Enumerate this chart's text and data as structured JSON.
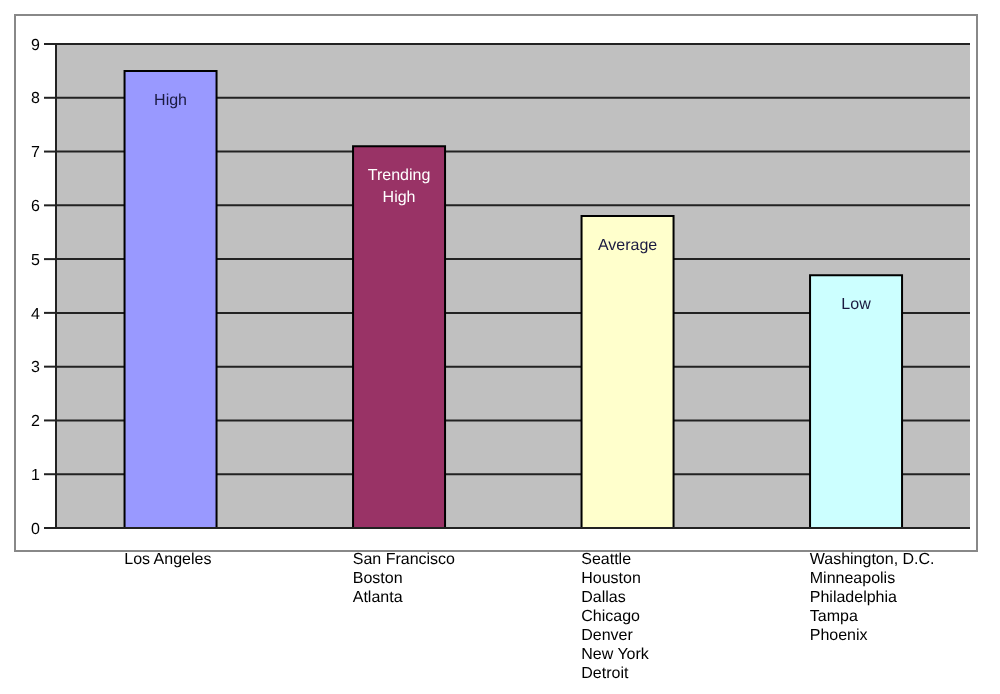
{
  "chart_data": {
    "type": "bar",
    "categories": [
      "Los Angeles",
      "San Francisco\nBoston\nAtlanta",
      "Seattle\nHouston\nDallas\nChicago\nDenver\nNew York\nDetroit",
      "Washington, D.C.\nMinneapolis\nPhiladelphia\nTampa\nPhoenix"
    ],
    "values": [
      8.5,
      7.1,
      5.8,
      4.7
    ],
    "colors": [
      "#9999ff",
      "#993366",
      "#ffffcc",
      "#ccffff"
    ],
    "value_labels": [
      "High",
      "Trending High",
      "Average",
      "Low"
    ],
    "ylim": [
      0,
      9
    ],
    "yticks": [
      0,
      1,
      2,
      3,
      4,
      5,
      6,
      7,
      8,
      9
    ],
    "grid": "y",
    "legend": false
  }
}
